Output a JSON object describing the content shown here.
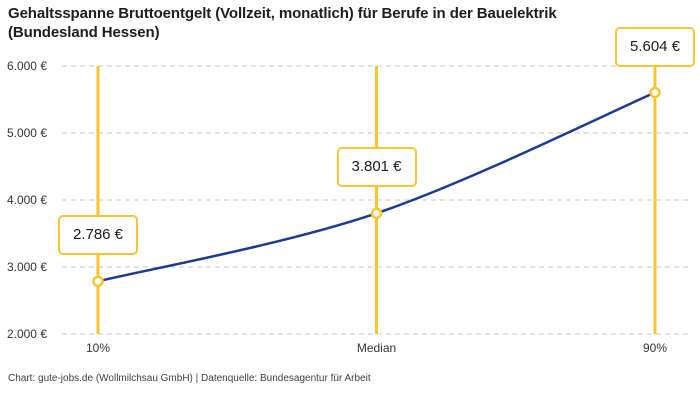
{
  "header": {
    "title_line1": "Gehaltsspanne Bruttoentgelt (Vollzeit, monatlich) für Berufe in der Bauelektrik",
    "title_line2": "(Bundesland Hessen)"
  },
  "footer": {
    "text": "Chart: gute-jobs.de (Wollmilchsau GmbH) | Datenquelle: Bundesagentur für Arbeit"
  },
  "chart_data": {
    "type": "line",
    "title": "Gehaltsspanne Bruttoentgelt (Vollzeit, monatlich) für Berufe in der Bauelektrik (Bundesland Hessen)",
    "categories": [
      "10%",
      "Median",
      "90%"
    ],
    "values": [
      2786,
      3801,
      5604
    ],
    "value_labels": [
      "2.786 €",
      "3.801 €",
      "5.604 €"
    ],
    "unit": "€",
    "ylim": [
      2000,
      6000
    ],
    "y_ticks": [
      {
        "value": 6000,
        "label": "6.000 €"
      },
      {
        "value": 5000,
        "label": "5.000 €"
      },
      {
        "value": 4000,
        "label": "4.000 €"
      },
      {
        "value": 3000,
        "label": "3.000 €"
      },
      {
        "value": 2000,
        "label": "2.000 €"
      }
    ],
    "grid": "horizontal-dashed",
    "legend": "none",
    "annotations": "each percentile has a vertical accent line with a framed value label and an open circle marker on the curve",
    "colors": {
      "line": "#1e3a99",
      "accent": "#fcc42c",
      "grid": "#c9c9c9",
      "marker_fill": "#ffffff",
      "axis_text": "#33343d",
      "value_text": "#1b1b22"
    }
  }
}
